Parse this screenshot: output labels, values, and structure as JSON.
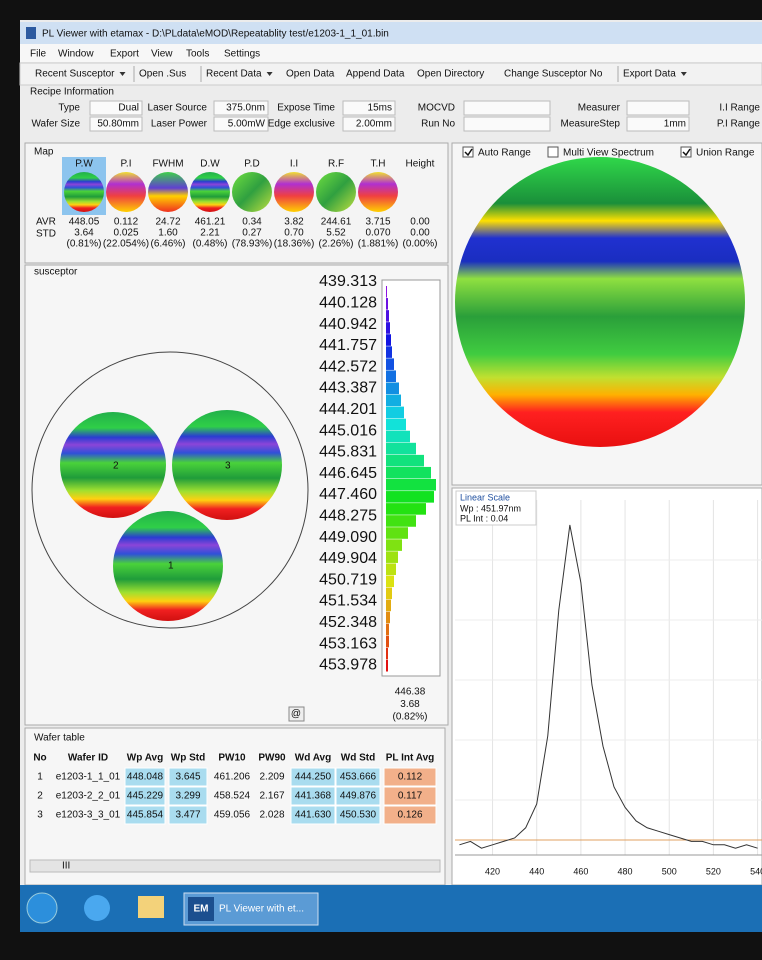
{
  "window": {
    "title": "PL Viewer with etamax - D:\\PLdata\\eMOD\\Repeatablity test/e1203-1_1_01.bin"
  },
  "menu": [
    "File",
    "Window",
    "Export",
    "View",
    "Tools",
    "Settings"
  ],
  "toolbar": [
    "Recent Susceptor",
    "Open .Sus",
    "Recent Data",
    "Open Data",
    "Append Data",
    "Open Directory",
    "Change Susceptor No",
    "Export Data"
  ],
  "recipe": {
    "title": "Recipe Information",
    "fields": [
      {
        "label": "Type",
        "value": "Dual"
      },
      {
        "label": "Laser Source",
        "value": "375.0nm"
      },
      {
        "label": "Expose Time",
        "value": "15ms"
      },
      {
        "label": "MOCVD"
      },
      {
        "label": "Measurer"
      },
      {
        "label": "I.I Range"
      },
      {
        "label": "Wafer Size",
        "value": "50.80mm"
      },
      {
        "label": "Laser Power",
        "value": "5.00mW"
      },
      {
        "label": "Edge exclusive",
        "value": "2.00mm"
      },
      {
        "label": "Run No"
      },
      {
        "label": "MeasureStep",
        "value": "1mm"
      },
      {
        "label": "P.I Range"
      }
    ]
  },
  "map": {
    "title": "Map",
    "columns": [
      "P.W",
      "P.I",
      "FWHM",
      "D.W",
      "P.D",
      "I.I",
      "R.F",
      "T.H",
      "Height"
    ],
    "row_labels": [
      "AVR",
      "STD"
    ],
    "avr": [
      "448.05",
      "0.112",
      "24.72",
      "461.21",
      "0.34",
      "3.82",
      "244.61",
      "3.715",
      "0.00"
    ],
    "std": [
      "3.64",
      "0.025",
      "1.60",
      "2.21",
      "0.27",
      "0.70",
      "5.52",
      "0.070",
      "0.00"
    ],
    "std_pct": [
      "(0.81%)",
      "(22.054%)",
      "(6.46%)",
      "(0.48%)",
      "(78.93%)",
      "(18.36%)",
      "(2.26%)",
      "(1.881%)",
      "(0.00%)"
    ]
  },
  "susceptor": {
    "title": "susceptor",
    "wafer_labels": [
      "1",
      "2",
      "3"
    ],
    "scale": [
      "439.313",
      "440.128",
      "440.942",
      "441.757",
      "442.572",
      "443.387",
      "444.201",
      "445.016",
      "445.831",
      "446.645",
      "447.460",
      "448.275",
      "449.090",
      "449.904",
      "450.719",
      "451.534",
      "452.348",
      "453.163",
      "453.978"
    ],
    "histogram": [
      1,
      2,
      3,
      4,
      5,
      6,
      8,
      10,
      13,
      15,
      18,
      20,
      24,
      30,
      38,
      45,
      50,
      48,
      40,
      30,
      22,
      16,
      12,
      10,
      8,
      6,
      5,
      4,
      3,
      3,
      2,
      2
    ],
    "summary": [
      "446.38",
      "3.68",
      "(0.82%)"
    ],
    "button": "@"
  },
  "view_options": [
    "Auto Range",
    "Multi View Spectrum",
    "Union Range"
  ],
  "spectrum": {
    "title": "Linear Scale",
    "wp": "Wp : 451.97nm",
    "pl_int": "PL Int : 0.04",
    "x": [
      405,
      410,
      415,
      420,
      425,
      430,
      435,
      440,
      445,
      450,
      455,
      460,
      465,
      470,
      475,
      480,
      485,
      490,
      495,
      500,
      505,
      510,
      515,
      520,
      525,
      530,
      535,
      540
    ],
    "values": [
      0.03,
      0.04,
      0.02,
      0.03,
      0.04,
      0.05,
      0.08,
      0.15,
      0.35,
      0.72,
      0.97,
      0.8,
      0.5,
      0.32,
      0.2,
      0.14,
      0.1,
      0.08,
      0.07,
      0.06,
      0.05,
      0.04,
      0.04,
      0.03,
      0.03,
      0.02,
      0.03,
      0.02
    ],
    "xlim": [
      403,
      542
    ],
    "xticks": [
      420,
      440,
      460,
      480,
      500,
      520,
      540
    ]
  },
  "wafer_table": {
    "title": "Wafer table",
    "headers": [
      "No",
      "Wafer ID",
      "Wp Avg",
      "Wp Std",
      "PW10",
      "PW90",
      "Wd Avg",
      "Wd Std",
      "PL Int Avg"
    ],
    "rows": [
      [
        "1",
        "e1203-1_1_01",
        "448.048",
        "3.645",
        "461.206",
        "2.209",
        "444.250",
        "453.666",
        "0.112"
      ],
      [
        "2",
        "e1203-2_2_01",
        "445.229",
        "3.299",
        "458.524",
        "2.167",
        "441.368",
        "449.876",
        "0.117"
      ],
      [
        "3",
        "e1203-3_3_01",
        "445.854",
        "3.477",
        "459.056",
        "2.028",
        "441.630",
        "450.530",
        "0.126"
      ]
    ],
    "scroll": "III"
  },
  "taskbar": {
    "app_icon": "EM",
    "app": "PL Viewer with et..."
  }
}
